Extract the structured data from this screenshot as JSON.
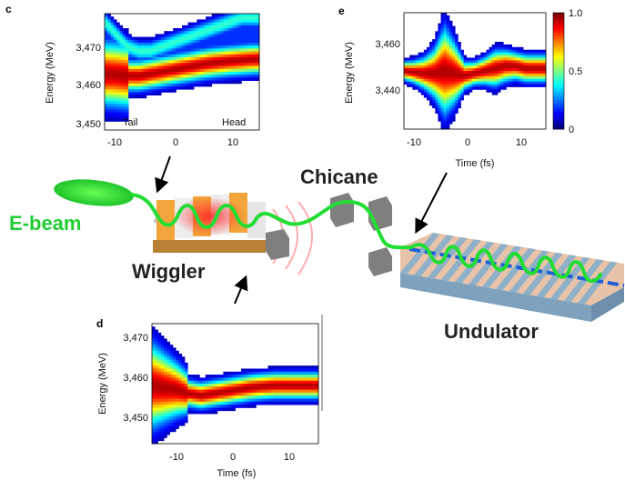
{
  "colors": {
    "beam_green": "#22dd33",
    "beam_label_green": "#22cc33",
    "wiggler_orange": "#f2a53a",
    "wiggler_light": "#e8e8e8",
    "magnet_grey": "#8a8a8a",
    "undulator_blue": "#7fa6c4",
    "undulator_peach": "#f0c9b0",
    "radiation_blue": "#1f5fd6",
    "radiation_red": "#e23030"
  },
  "labels": {
    "ebeam": "E-beam",
    "wiggler": "Wiggler",
    "chicane": "Chicane",
    "undulator": "Undulator"
  },
  "panels": {
    "c": {
      "letter": "c",
      "ylabel": "Energy (MeV)",
      "yticks": [
        "3,470",
        "3,460",
        "3,450"
      ],
      "xticks": [
        "-10",
        "0",
        "10"
      ],
      "annotations": [
        "Tail",
        "Head"
      ]
    },
    "d": {
      "letter": "d",
      "ylabel": "Energy (MeV)",
      "xlabel": "Time (fs)",
      "yticks": [
        "3,470",
        "3,460",
        "3,450"
      ],
      "xticks": [
        "-10",
        "0",
        "10"
      ]
    },
    "e": {
      "letter": "e",
      "ylabel": "Energy (MeV)",
      "xlabel": "Time (fs)",
      "yticks": [
        "3,460",
        "3,440"
      ],
      "xticks": [
        "-10",
        "0",
        "10"
      ],
      "colorbar_ticks": [
        "1.0",
        "0.5",
        "0"
      ]
    }
  },
  "chart_data": [
    {
      "panel": "c",
      "type": "heatmap",
      "xlabel": "",
      "ylabel": "Energy (MeV)",
      "xlim": [
        -12,
        15
      ],
      "ylim": [
        3448,
        3476
      ],
      "annotations": [
        "Tail",
        "Head"
      ],
      "ridge_t": [
        -12,
        -10,
        -8,
        -6,
        -4,
        -2,
        0,
        2,
        4,
        6,
        8,
        10,
        12,
        14,
        15
      ],
      "ridge_e": [
        3461.5,
        3461.3,
        3461.0,
        3461.0,
        3461.5,
        3462.0,
        3462.5,
        3463.0,
        3463.5,
        3464.0,
        3464.3,
        3464.6,
        3464.8,
        3465.0,
        3465.0
      ],
      "upper_e": [
        3474,
        3471,
        3468,
        3467,
        3467,
        3468,
        3469,
        3470,
        3471,
        3472,
        3473,
        3474,
        3475,
        3475,
        3475
      ]
    },
    {
      "panel": "d",
      "type": "heatmap",
      "xlabel": "Time (fs)",
      "ylabel": "Energy (MeV)",
      "xlim": [
        -12,
        15
      ],
      "ylim": [
        3444,
        3474
      ],
      "ridge_t": [
        -12,
        -10,
        -8,
        -6,
        -4,
        -2,
        0,
        2,
        4,
        6,
        8,
        10,
        12,
        14,
        15
      ],
      "ridge_e": [
        3458.5,
        3458.0,
        3457.5,
        3456.5,
        3456.0,
        3456.5,
        3457.0,
        3457.5,
        3458.0,
        3458.3,
        3458.5,
        3458.5,
        3458.5,
        3458.5,
        3458.5
      ]
    },
    {
      "panel": "e",
      "type": "heatmap",
      "xlabel": "Time (fs)",
      "ylabel": "Energy (MeV)",
      "xlim": [
        -13,
        15
      ],
      "ylim": [
        3426,
        3474
      ],
      "colorbar": {
        "min": 0,
        "max": 1.0,
        "ticks": [
          0,
          0.5,
          1.0
        ]
      },
      "ridge_t": [
        -13,
        -11,
        -9,
        -7,
        -5,
        -3,
        -1,
        1,
        3,
        5,
        7,
        9,
        11,
        13,
        15
      ],
      "ridge_e": [
        3450,
        3449.5,
        3449,
        3449,
        3450,
        3449,
        3448,
        3449,
        3450,
        3451,
        3452,
        3452,
        3451,
        3451,
        3451
      ],
      "spread": [
        2,
        3,
        5,
        9,
        18,
        12,
        4,
        3,
        4,
        6,
        5,
        4,
        4,
        4,
        4
      ]
    }
  ]
}
